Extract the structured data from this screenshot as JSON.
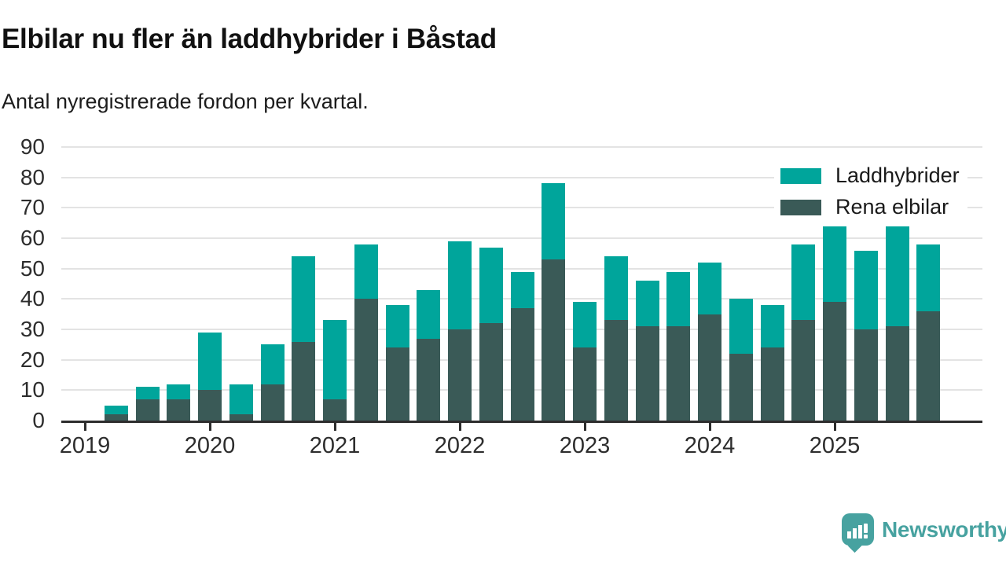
{
  "header": {
    "title": "Elbilar nu fler än laddhybrider i Båstad",
    "subtitle": "Antal nyregistrerade fordon per kvartal."
  },
  "chart_data": {
    "type": "bar",
    "stacked": true,
    "stack_note": "Rena elbilar at bottom of stack, Laddhybrider on top",
    "title": "Elbilar nu fler än laddhybrider i Båstad",
    "subtitle": "Antal nyregistrerade fordon per kvartal.",
    "categories": [
      "2019 Q2",
      "2019 Q3",
      "2019 Q4",
      "2020 Q1",
      "2020 Q2",
      "2020 Q3",
      "2020 Q4",
      "2021 Q1",
      "2021 Q2",
      "2021 Q3",
      "2021 Q4",
      "2022 Q1",
      "2022 Q2",
      "2022 Q3",
      "2022 Q4",
      "2023 Q1",
      "2023 Q2",
      "2023 Q3",
      "2023 Q4",
      "2024 Q1",
      "2024 Q2",
      "2024 Q3",
      "2024 Q4",
      "2025 Q1",
      "2025 Q2",
      "2025 Q3",
      "2025 Q4"
    ],
    "series": [
      {
        "name": "Laddhybrider",
        "color": "#00a59b",
        "values": [
          3,
          4,
          5,
          19,
          10,
          13,
          28,
          26,
          18,
          14,
          16,
          29,
          25,
          12,
          25,
          15,
          21,
          15,
          18,
          17,
          18,
          14,
          25,
          25,
          26,
          33,
          22
        ]
      },
      {
        "name": "Rena elbilar",
        "color": "#3a5a57",
        "values": [
          2,
          7,
          7,
          10,
          2,
          12,
          26,
          7,
          40,
          24,
          27,
          30,
          32,
          37,
          53,
          24,
          33,
          31,
          31,
          35,
          22,
          24,
          33,
          39,
          30,
          31,
          36
        ]
      }
    ],
    "xlabel": "",
    "ylabel": "",
    "ylim": [
      0,
      90
    ],
    "yticks": [
      0,
      10,
      20,
      30,
      40,
      50,
      60,
      70,
      80,
      90
    ],
    "xticks": [
      "2019",
      "2020",
      "2021",
      "2022",
      "2023",
      "2024",
      "2025"
    ],
    "grid": true,
    "gridline_color": "#e3e3e3",
    "legend_position": "top-right"
  },
  "legend": {
    "items": [
      {
        "label": "Laddhybrider",
        "color": "#00a59b"
      },
      {
        "label": "Rena elbilar",
        "color": "#3a5a57"
      }
    ]
  },
  "footer": {
    "brand": "Newsworthy",
    "brand_color": "#47a2a0"
  }
}
